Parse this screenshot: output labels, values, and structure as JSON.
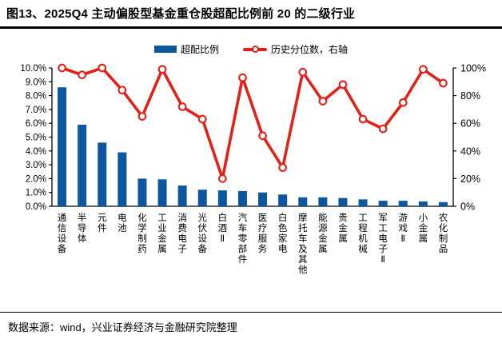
{
  "header": {
    "title": "图13、2025Q4 主动偏股型基金重仓股超配比例前 20 的二级行业"
  },
  "legend": {
    "bar_label": "超配比例",
    "line_label": "历史分位数，右轴"
  },
  "footer": {
    "source": "数据来源：wind，兴业证券经济与金融研究院整理"
  },
  "colors": {
    "bar": "#0d57a1",
    "line": "#e32119",
    "marker_fill": "#ffffff",
    "axis": "#000000",
    "text": "#000000"
  },
  "chart_data": {
    "type": "bar",
    "subtype": "bar+line combo, dual axis",
    "title": "2025Q4 主动偏股型基金重仓股超配比例前 20 的二级行业",
    "categories": [
      "通信设备",
      "半导体",
      "元件",
      "电池",
      "化学制药",
      "工业金属",
      "消费电子",
      "光伏设备",
      "白酒Ⅱ",
      "汽车零部件",
      "医疗服务",
      "白色家电",
      "摩托车及其他",
      "能源金属",
      "贵金属",
      "工程机械",
      "军工电子Ⅱ",
      "游戏Ⅱ",
      "小金属",
      "农化制品"
    ],
    "series": [
      {
        "name": "超配比例",
        "type": "bar",
        "axis": "left",
        "unit": "%",
        "values": [
          8.6,
          5.9,
          4.6,
          3.9,
          2.0,
          1.95,
          1.5,
          1.2,
          1.15,
          1.1,
          1.0,
          0.85,
          0.65,
          0.65,
          0.6,
          0.5,
          0.4,
          0.4,
          0.35,
          0.3
        ]
      },
      {
        "name": "历史分位数，右轴",
        "type": "line",
        "axis": "right",
        "unit": "%",
        "values": [
          100,
          95,
          100,
          84,
          65,
          99,
          72,
          63,
          20,
          93,
          51,
          28,
          97,
          76,
          88,
          63,
          56,
          75,
          99,
          89
        ]
      }
    ],
    "left_axis": {
      "min": 0,
      "max": 10,
      "step": 1,
      "tick_labels": [
        "0.0%",
        "1.0%",
        "2.0%",
        "3.0%",
        "4.0%",
        "5.0%",
        "6.0%",
        "7.0%",
        "8.0%",
        "9.0%",
        "10.0%"
      ]
    },
    "right_axis": {
      "min": 0,
      "max": 100,
      "step": 20,
      "tick_labels": [
        "0%",
        "20%",
        "40%",
        "60%",
        "80%",
        "100%"
      ]
    },
    "grid": false,
    "legend_position": "top"
  }
}
